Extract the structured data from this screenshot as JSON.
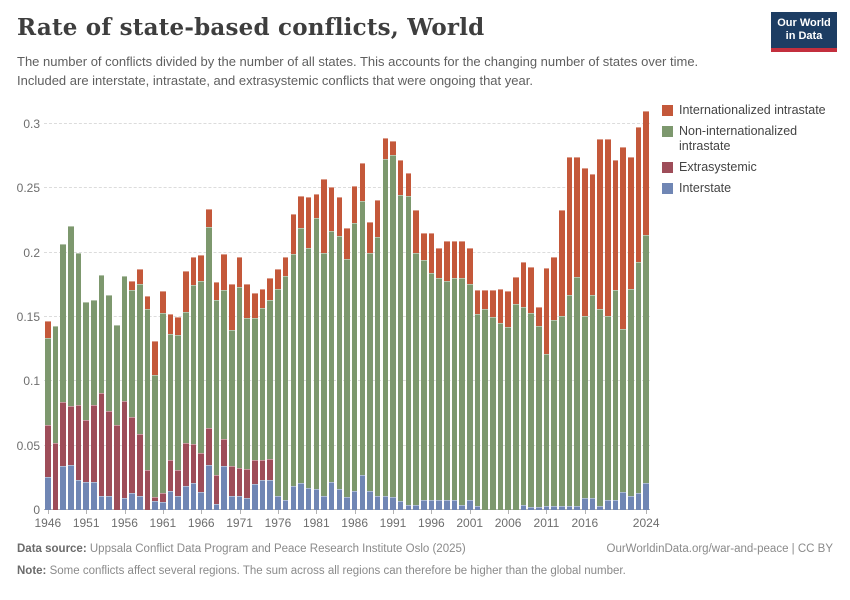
{
  "header": {
    "title": "Rate of state-based conflicts, World",
    "subtitle": "The number of conflicts divided by the number of all states. This accounts for the changing number of states over time. Included are interstate, intrastate, and extrasystemic conflicts that were ongoing that year."
  },
  "logo": {
    "line1": "Our World",
    "line2": "in Data"
  },
  "colors": {
    "internationalized": "#C4583A",
    "non_internationalized": "#7D986E",
    "extrasystemic": "#9E4D59",
    "interstate": "#7086B4",
    "grid": "#dcdcdc",
    "axis": "#b3b3b3"
  },
  "legend": [
    {
      "label": "Internationalized intrastate",
      "color_key": "internationalized"
    },
    {
      "label": "Non-internationalized intrastate",
      "color_key": "non_internationalized"
    },
    {
      "label": "Extrasystemic",
      "color_key": "extrasystemic"
    },
    {
      "label": "Interstate",
      "color_key": "interstate"
    }
  ],
  "chart_data": {
    "type": "bar",
    "stacked": true,
    "title": "Rate of state-based conflicts, World",
    "xlabel": "",
    "ylabel": "",
    "ylim": [
      0,
      0.31
    ],
    "grid": true,
    "legend_position": "top-right",
    "yticks": [
      {
        "value": 0,
        "label": "0"
      },
      {
        "value": 0.05,
        "label": "0.05"
      },
      {
        "value": 0.1,
        "label": "0.1"
      },
      {
        "value": 0.15,
        "label": "0.15"
      },
      {
        "value": 0.2,
        "label": "0.2"
      },
      {
        "value": 0.25,
        "label": "0.25"
      },
      {
        "value": 0.3,
        "label": "0.3"
      }
    ],
    "xtick_years": [
      1946,
      1951,
      1956,
      1961,
      1966,
      1971,
      1976,
      1981,
      1986,
      1991,
      1996,
      2001,
      2006,
      2011,
      2016,
      2024
    ],
    "years": [
      1946,
      1947,
      1948,
      1949,
      1950,
      1951,
      1952,
      1953,
      1954,
      1955,
      1956,
      1957,
      1958,
      1959,
      1960,
      1961,
      1962,
      1963,
      1964,
      1965,
      1966,
      1967,
      1968,
      1969,
      1970,
      1971,
      1972,
      1973,
      1974,
      1975,
      1976,
      1977,
      1978,
      1979,
      1980,
      1981,
      1982,
      1983,
      1984,
      1985,
      1986,
      1987,
      1988,
      1989,
      1990,
      1991,
      1992,
      1993,
      1994,
      1995,
      1996,
      1997,
      1998,
      1999,
      2000,
      2001,
      2002,
      2003,
      2004,
      2005,
      2006,
      2007,
      2008,
      2009,
      2010,
      2011,
      2012,
      2013,
      2014,
      2015,
      2016,
      2017,
      2018,
      2019,
      2020,
      2021,
      2022,
      2023,
      2024
    ],
    "series": [
      {
        "name": "Interstate",
        "color_key": "interstate",
        "values": [
          0.026,
          0,
          0.034,
          0.035,
          0.023,
          0.022,
          0.022,
          0.011,
          0.011,
          0,
          0.009,
          0.013,
          0.011,
          0,
          0.007,
          0.006,
          0.015,
          0.011,
          0.019,
          0.021,
          0.014,
          0.035,
          0.005,
          0.034,
          0.011,
          0.011,
          0.009,
          0.02,
          0.023,
          0.023,
          0.011,
          0.008,
          0.019,
          0.021,
          0.017,
          0.016,
          0.011,
          0.022,
          0.016,
          0.01,
          0.015,
          0.027,
          0.015,
          0.011,
          0.011,
          0.01,
          0.007,
          0.004,
          0.004,
          0.008,
          0.008,
          0.008,
          0.008,
          0.008,
          0.004,
          0.008,
          0.003,
          0,
          0,
          0,
          0,
          0,
          0.004,
          0.002,
          0.002,
          0.003,
          0.003,
          0.003,
          0.003,
          0.003,
          0.009,
          0.009,
          0.003,
          0.008,
          0.008,
          0.014,
          0.011,
          0.013,
          0.021
        ]
      },
      {
        "name": "Extrasystemic",
        "color_key": "extrasystemic",
        "values": [
          0.04,
          0.052,
          0.05,
          0.046,
          0.059,
          0.048,
          0.06,
          0.08,
          0.066,
          0.066,
          0.076,
          0.059,
          0.048,
          0.031,
          0.003,
          0.007,
          0.024,
          0.02,
          0.033,
          0.03,
          0.03,
          0.029,
          0.022,
          0.021,
          0.023,
          0.022,
          0.023,
          0.019,
          0.016,
          0.017,
          0,
          0,
          0,
          0,
          0,
          0,
          0,
          0,
          0,
          0,
          0,
          0,
          0,
          0,
          0,
          0,
          0,
          0,
          0,
          0,
          0,
          0,
          0,
          0,
          0,
          0,
          0,
          0,
          0,
          0,
          0,
          0,
          0,
          0,
          0,
          0,
          0,
          0,
          0,
          0,
          0,
          0,
          0,
          0,
          0,
          0,
          0,
          0,
          0
        ]
      },
      {
        "name": "Non-internationalized intrastate",
        "color_key": "non_internationalized",
        "values": [
          0.068,
          0.091,
          0.123,
          0.14,
          0.118,
          0.092,
          0.081,
          0.092,
          0.09,
          0.078,
          0.097,
          0.099,
          0.117,
          0.125,
          0.095,
          0.14,
          0.098,
          0.105,
          0.102,
          0.124,
          0.134,
          0.156,
          0.136,
          0.116,
          0.106,
          0.14,
          0.117,
          0.11,
          0.118,
          0.123,
          0.161,
          0.174,
          0.18,
          0.198,
          0.187,
          0.211,
          0.189,
          0.195,
          0.197,
          0.185,
          0.208,
          0.213,
          0.185,
          0.201,
          0.262,
          0.266,
          0.238,
          0.24,
          0.196,
          0.186,
          0.176,
          0.172,
          0.17,
          0.172,
          0.176,
          0.168,
          0.149,
          0.156,
          0.15,
          0.145,
          0.142,
          0.16,
          0.154,
          0.151,
          0.141,
          0.118,
          0.145,
          0.148,
          0.164,
          0.178,
          0.142,
          0.158,
          0.153,
          0.143,
          0.163,
          0.127,
          0.161,
          0.18,
          0.193
        ]
      },
      {
        "name": "Internationalized intrastate",
        "color_key": "internationalized",
        "values": [
          0.013,
          0,
          0,
          0,
          0,
          0,
          0,
          0,
          0,
          0,
          0,
          0.007,
          0.011,
          0.01,
          0.026,
          0.017,
          0.015,
          0.014,
          0.032,
          0.022,
          0.02,
          0.014,
          0.014,
          0.028,
          0.036,
          0.024,
          0.027,
          0.02,
          0.015,
          0.017,
          0.015,
          0.015,
          0.031,
          0.025,
          0.039,
          0.019,
          0.057,
          0.034,
          0.03,
          0.024,
          0.029,
          0.03,
          0.024,
          0.029,
          0.016,
          0.011,
          0.027,
          0.018,
          0.033,
          0.021,
          0.031,
          0.024,
          0.031,
          0.029,
          0.029,
          0.028,
          0.019,
          0.015,
          0.021,
          0.027,
          0.028,
          0.021,
          0.035,
          0.036,
          0.015,
          0.067,
          0.049,
          0.082,
          0.107,
          0.093,
          0.115,
          0.094,
          0.132,
          0.137,
          0.101,
          0.141,
          0.102,
          0.105,
          0.096
        ]
      }
    ]
  },
  "footer": {
    "source_label": "Data source:",
    "source_text": " Uppsala Conflict Data Program and Peace Research Institute Oslo (2025)",
    "link_text": "OurWorldinData.org/war-and-peace | CC BY",
    "note_label": "Note:",
    "note_text": " Some conflicts affect several regions. The sum across all regions can therefore be higher than the global number."
  }
}
